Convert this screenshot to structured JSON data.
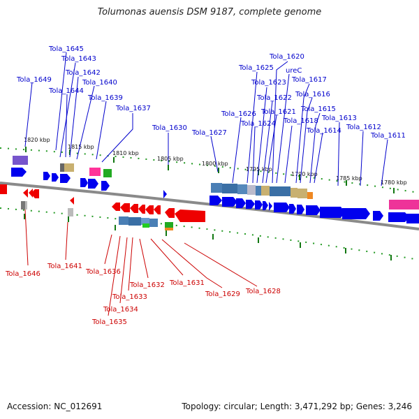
{
  "title": "Tolumonas auensis DSM 9187, complete genome",
  "accession": "Accession: NC_012691",
  "summary": "Topology: circular; Length: 3,471,292 bp; Genes: 3,246",
  "colors": {
    "forward": "#0000ee",
    "reverse": "#ee0000",
    "backbone": "#888888",
    "tick": "#008800"
  },
  "ticks": [
    "1820 kbp",
    "1815 kbp",
    "1810 kbp",
    "1805 kbp",
    "1800 kbp",
    "1795 kbp",
    "1790 kbp",
    "1785 kbp",
    "1780 kbp"
  ],
  "upper_genes": [
    "Tola_1649",
    "Tola_1645",
    "Tola_1643",
    "Tola_1644",
    "Tola_1642",
    "Tola_1640",
    "Tola_1639",
    "Tola_1637",
    "Tola_1630",
    "Tola_1627",
    "Tola_1626",
    "Tola_1625",
    "Tola_1624",
    "Tola_1623",
    "Tola_1622",
    "Tola_1621",
    "Tola_1620",
    "ureC",
    "Tola_1618",
    "Tola_1617",
    "Tola_1616",
    "Tola_1615",
    "Tola_1614",
    "Tola_1613",
    "Tola_1612",
    "Tola_1611"
  ],
  "lower_genes": [
    "Tola_1646",
    "Tola_1641",
    "Tola_1636",
    "Tola_1635",
    "Tola_1634",
    "Tola_1633",
    "Tola_1632",
    "Tola_1631",
    "Tola_1629",
    "Tola_1628"
  ]
}
